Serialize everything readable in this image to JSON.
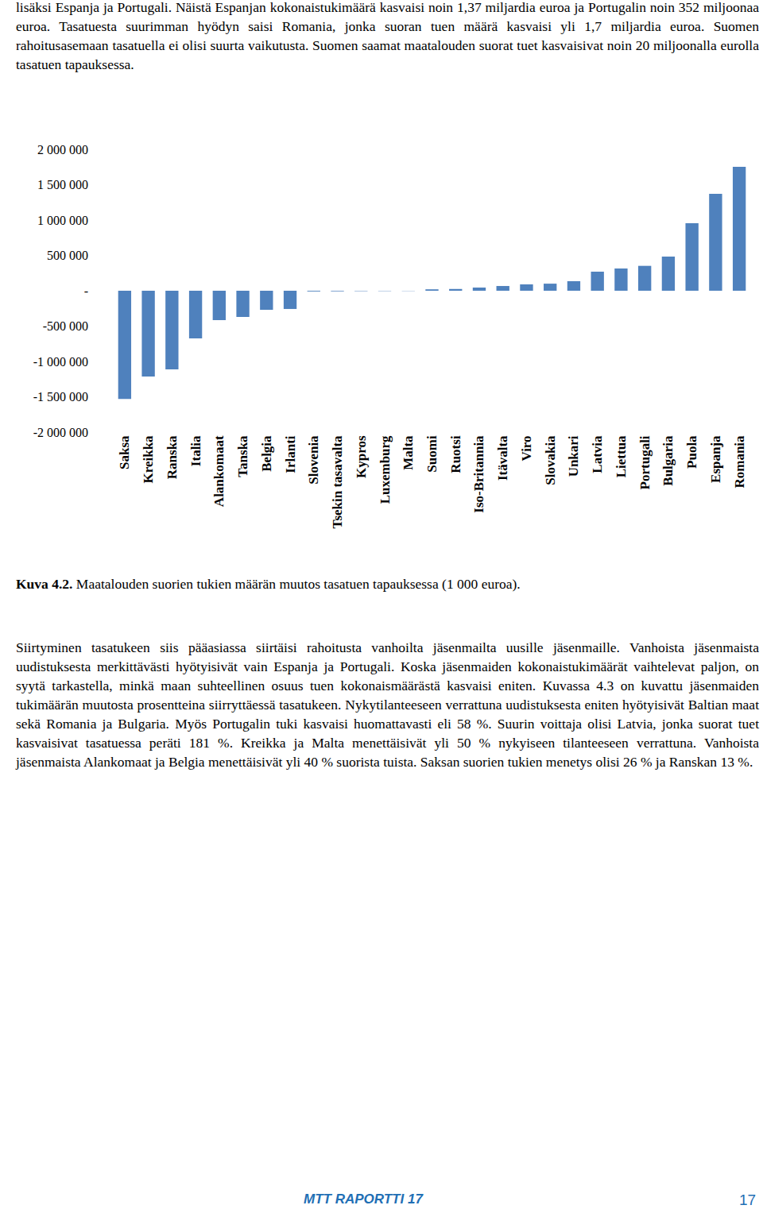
{
  "top_text": "lisäksi Espanja ja Portugali. Näistä Espanjan kokonaistukimäärä kasvaisi noin 1,37 miljardia euroa ja Portugalin noin 352 miljoonaa euroa. Tasatuesta suurimman hyödyn saisi Romania, jonka suoran tuen määrä kasvaisi yli 1,7 miljardia euroa. Suomen rahoitusasemaan tasatuella ei olisi suurta vaikutusta. Suomen saamat maatalouden suorat tuet kasvaisivat noin 20 miljoonalla eurolla tasatuen tapauksessa.",
  "chart_data": {
    "type": "bar",
    "color": "#4f81bd",
    "grid": false,
    "categories": [
      "Saksa",
      "Kreikka",
      "Ranska",
      "Italia",
      "Alankomaat",
      "Tanska",
      "Belgia",
      "Irlanti",
      "Slovenia",
      "Tsekin tasavalta",
      "Kypros",
      "Luxemburg",
      "Malta",
      "Suomi",
      "Ruotsi",
      "Iso-Britannia",
      "Itävalta",
      "Viro",
      "Slovakia",
      "Unkari",
      "Latvia",
      "Liettua",
      "Portugali",
      "Bulgaria",
      "Puola",
      "Espanja",
      "Romania"
    ],
    "values": [
      -1530000,
      -1213000,
      -1112000,
      -674000,
      -416000,
      -371000,
      -270000,
      -258000,
      -10000,
      -8000,
      -5000,
      -4000,
      -3000,
      20000,
      25000,
      45000,
      67000,
      90000,
      100000,
      135000,
      270000,
      315000,
      352000,
      483000,
      955000,
      1370000,
      1753000
    ],
    "ylim": [
      -2000000,
      2000000
    ],
    "yticks": [
      {
        "value": -2000000,
        "label": "-2 000 000"
      },
      {
        "value": -1500000,
        "label": "-1 500 000"
      },
      {
        "value": -1000000,
        "label": "-1 000 000"
      },
      {
        "value": -500000,
        "label": "-500 000"
      },
      {
        "value": 0,
        "label": "-"
      },
      {
        "value": 500000,
        "label": "500 000"
      },
      {
        "value": 1000000,
        "label": "1 000 000"
      },
      {
        "value": 1500000,
        "label": "1 500 000"
      },
      {
        "value": 2000000,
        "label": "2 000 000"
      }
    ]
  },
  "caption": {
    "label": "Kuva 4.2.",
    "text": "Maatalouden suorien tukien määrän muutos tasatuen tapauksessa (1 000 euroa)."
  },
  "body_text": "Siirtyminen tasatukeen siis pääasiassa siirtäisi rahoitusta vanhoilta jäsenmailta uusille jäsenmaille. Vanhoista jäsenmaista uudistuksesta merkittävästi hyötyisivät vain Espanja ja Portugali. Koska jäsenmaiden kokonaistukimäärät vaihtelevat paljon, on syytä tarkastella, minkä maan suhteellinen osuus tuen kokonaismäärästä kasvaisi eniten. Kuvassa 4.3 on kuvattu jäsenmaiden tukimäärän muutosta prosentteina siirryttäessä tasatukeen. Nykytilanteeseen verrattuna uudistuksesta eniten hyötyisivät Baltian maat sekä Romania ja Bulgaria. Myös Portugalin tuki kasvaisi huomattavasti eli 58 %. Suurin voittaja olisi Latvia, jonka suorat tuet kasvaisivat tasatuessa peräti 181 %. Kreikka ja Malta menettäisivät yli 50 % nykyiseen tilanteeseen verrattuna. Vanhoista jäsenmaista Alankomaat ja Belgia menettäisivät yli 40 % suorista tuista. Saksan suorien tukien menetys olisi 26 % ja Ranskan 13 %.",
  "footer": {
    "series": "MTT RAPORTTI 17",
    "page": "17"
  }
}
